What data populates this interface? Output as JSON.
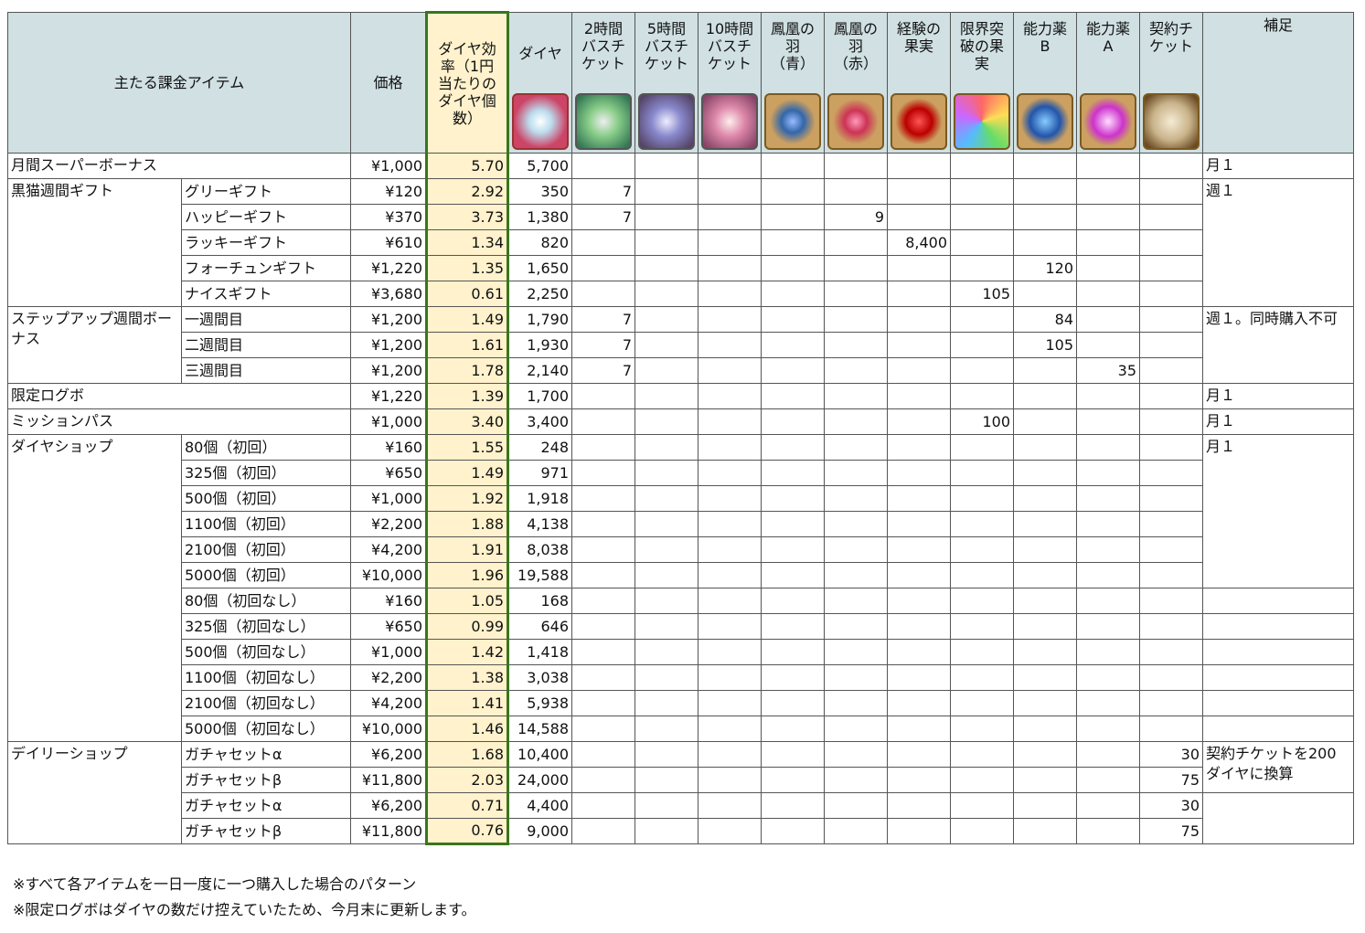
{
  "header": {
    "item": "主たる課金アイテム",
    "price": "価格",
    "efficiency": "ダイヤ効\n率（1円\n当たりの\nダイヤ個\n数）",
    "dia": "ダイヤ",
    "items": [
      "2時間\nバスチ\nケット",
      "5時間\nバスチ\nケット",
      "10時間\nバスチ\nケット",
      "鳳凰の\n羽\n（青）",
      "鳳凰の\n羽\n（赤）",
      "経験の\n果実",
      "限界突\n破の果\n実",
      "能力薬\nB",
      "能力薬\nA",
      "契約チ\nケット"
    ],
    "note": "補足"
  },
  "groups": [
    {
      "label": "月間スーパーボーナス",
      "rows": [
        {
          "price": "¥1,000",
          "efficiency": "5.70",
          "dia": "5,700",
          "counts": [
            null,
            null,
            null,
            null,
            null,
            null,
            null,
            null,
            null,
            null
          ],
          "note": "月１"
        }
      ]
    },
    {
      "label": "黒猫週間ギフト",
      "rows": [
        {
          "item": "グリーギフト",
          "price": "¥120",
          "efficiency": "2.92",
          "dia": "350",
          "counts": [
            "7",
            null,
            null,
            null,
            null,
            null,
            null,
            null,
            null,
            null
          ],
          "note": "週１"
        },
        {
          "item": "ハッピーギフト",
          "price": "¥370",
          "efficiency": "3.73",
          "dia": "1,380",
          "counts": [
            "7",
            null,
            null,
            null,
            "9",
            null,
            null,
            null,
            null,
            null
          ]
        },
        {
          "item": "ラッキーギフト",
          "price": "¥610",
          "efficiency": "1.34",
          "dia": "820",
          "counts": [
            null,
            null,
            null,
            null,
            null,
            "8,400",
            null,
            null,
            null,
            null
          ]
        },
        {
          "item": "フォーチュンギフト",
          "price": "¥1,220",
          "efficiency": "1.35",
          "dia": "1,650",
          "counts": [
            null,
            null,
            null,
            null,
            null,
            null,
            null,
            "120",
            null,
            null
          ]
        },
        {
          "item": "ナイスギフト",
          "price": "¥3,680",
          "efficiency": "0.61",
          "dia": "2,250",
          "counts": [
            null,
            null,
            null,
            null,
            null,
            null,
            "105",
            null,
            null,
            null
          ]
        }
      ]
    },
    {
      "label": "ステップアップ週間ボーナス",
      "rows": [
        {
          "item": "一週間目",
          "price": "¥1,200",
          "efficiency": "1.49",
          "dia": "1,790",
          "counts": [
            "7",
            null,
            null,
            null,
            null,
            null,
            null,
            "84",
            null,
            null
          ],
          "note": "週１。同時購入不可"
        },
        {
          "item": "二週間目",
          "price": "¥1,200",
          "efficiency": "1.61",
          "dia": "1,930",
          "counts": [
            "7",
            null,
            null,
            null,
            null,
            null,
            null,
            "105",
            null,
            null
          ]
        },
        {
          "item": "三週間目",
          "price": "¥1,200",
          "efficiency": "1.78",
          "dia": "2,140",
          "counts": [
            "7",
            null,
            null,
            null,
            null,
            null,
            null,
            null,
            "35",
            null
          ]
        }
      ]
    },
    {
      "label": "限定ログボ",
      "rows": [
        {
          "price": "¥1,220",
          "efficiency": "1.39",
          "dia": "1,700",
          "counts": [
            null,
            null,
            null,
            null,
            null,
            null,
            null,
            null,
            null,
            null
          ],
          "note": "月１"
        }
      ]
    },
    {
      "label": "ミッションパス",
      "rows": [
        {
          "price": "¥1,000",
          "efficiency": "3.40",
          "dia": "3,400",
          "counts": [
            null,
            null,
            null,
            null,
            null,
            null,
            "100",
            null,
            null,
            null
          ],
          "note": "月１"
        }
      ]
    },
    {
      "label": "ダイヤショップ",
      "rows": [
        {
          "item": "80個（初回）",
          "price": "¥160",
          "efficiency": "1.55",
          "dia": "248",
          "counts": [
            null,
            null,
            null,
            null,
            null,
            null,
            null,
            null,
            null,
            null
          ],
          "note": "月１"
        },
        {
          "item": "325個（初回）",
          "price": "¥650",
          "efficiency": "1.49",
          "dia": "971",
          "counts": [
            null,
            null,
            null,
            null,
            null,
            null,
            null,
            null,
            null,
            null
          ]
        },
        {
          "item": "500個（初回）",
          "price": "¥1,000",
          "efficiency": "1.92",
          "dia": "1,918",
          "counts": [
            null,
            null,
            null,
            null,
            null,
            null,
            null,
            null,
            null,
            null
          ]
        },
        {
          "item": "1100個（初回）",
          "price": "¥2,200",
          "efficiency": "1.88",
          "dia": "4,138",
          "counts": [
            null,
            null,
            null,
            null,
            null,
            null,
            null,
            null,
            null,
            null
          ]
        },
        {
          "item": "2100個（初回）",
          "price": "¥4,200",
          "efficiency": "1.91",
          "dia": "8,038",
          "counts": [
            null,
            null,
            null,
            null,
            null,
            null,
            null,
            null,
            null,
            null
          ]
        },
        {
          "item": "5000個（初回）",
          "price": "¥10,000",
          "efficiency": "1.96",
          "dia": "19,588",
          "counts": [
            null,
            null,
            null,
            null,
            null,
            null,
            null,
            null,
            null,
            null
          ]
        },
        {
          "item": "80個（初回なし）",
          "price": "¥160",
          "efficiency": "1.05",
          "dia": "168",
          "counts": [
            null,
            null,
            null,
            null,
            null,
            null,
            null,
            null,
            null,
            null
          ],
          "note": null
        },
        {
          "item": "325個（初回なし）",
          "price": "¥650",
          "efficiency": "0.99",
          "dia": "646",
          "counts": [
            null,
            null,
            null,
            null,
            null,
            null,
            null,
            null,
            null,
            null
          ],
          "note": null
        },
        {
          "item": "500個（初回なし）",
          "price": "¥1,000",
          "efficiency": "1.42",
          "dia": "1,418",
          "counts": [
            null,
            null,
            null,
            null,
            null,
            null,
            null,
            null,
            null,
            null
          ],
          "note": null
        },
        {
          "item": "1100個（初回なし）",
          "price": "¥2,200",
          "efficiency": "1.38",
          "dia": "3,038",
          "counts": [
            null,
            null,
            null,
            null,
            null,
            null,
            null,
            null,
            null,
            null
          ],
          "note": null
        },
        {
          "item": "2100個（初回なし）",
          "price": "¥4,200",
          "efficiency": "1.41",
          "dia": "5,938",
          "counts": [
            null,
            null,
            null,
            null,
            null,
            null,
            null,
            null,
            null,
            null
          ],
          "note": null
        },
        {
          "item": "5000個（初回なし）",
          "price": "¥10,000",
          "efficiency": "1.46",
          "dia": "14,588",
          "counts": [
            null,
            null,
            null,
            null,
            null,
            null,
            null,
            null,
            null,
            null
          ],
          "note": null
        }
      ]
    },
    {
      "label": "デイリーショップ",
      "rows": [
        {
          "item": "ガチャセットα",
          "price": "¥6,200",
          "efficiency": "1.68",
          "dia": "10,400",
          "counts": [
            null,
            null,
            null,
            null,
            null,
            null,
            null,
            null,
            null,
            "30"
          ],
          "note": "契約チケットを200ダイヤに換算"
        },
        {
          "item": "ガチャセットβ",
          "price": "¥11,800",
          "efficiency": "2.03",
          "dia": "24,000",
          "counts": [
            null,
            null,
            null,
            null,
            null,
            null,
            null,
            null,
            null,
            "75"
          ]
        },
        {
          "item": "ガチャセットα",
          "price": "¥6,200",
          "efficiency": "0.71",
          "dia": "4,400",
          "counts": [
            null,
            null,
            null,
            null,
            null,
            null,
            null,
            null,
            null,
            "30"
          ],
          "note": null
        },
        {
          "item": "ガチャセットβ",
          "price": "¥11,800",
          "efficiency": "0.76",
          "dia": "9,000",
          "counts": [
            null,
            null,
            null,
            null,
            null,
            null,
            null,
            null,
            null,
            "75"
          ]
        }
      ]
    }
  ],
  "footnotes": [
    "※すべて各アイテムを一日一度に一つ購入した場合のパターン",
    "※限定ログボはダイヤの数だけ控えていたため、今月末に更新します。"
  ]
}
